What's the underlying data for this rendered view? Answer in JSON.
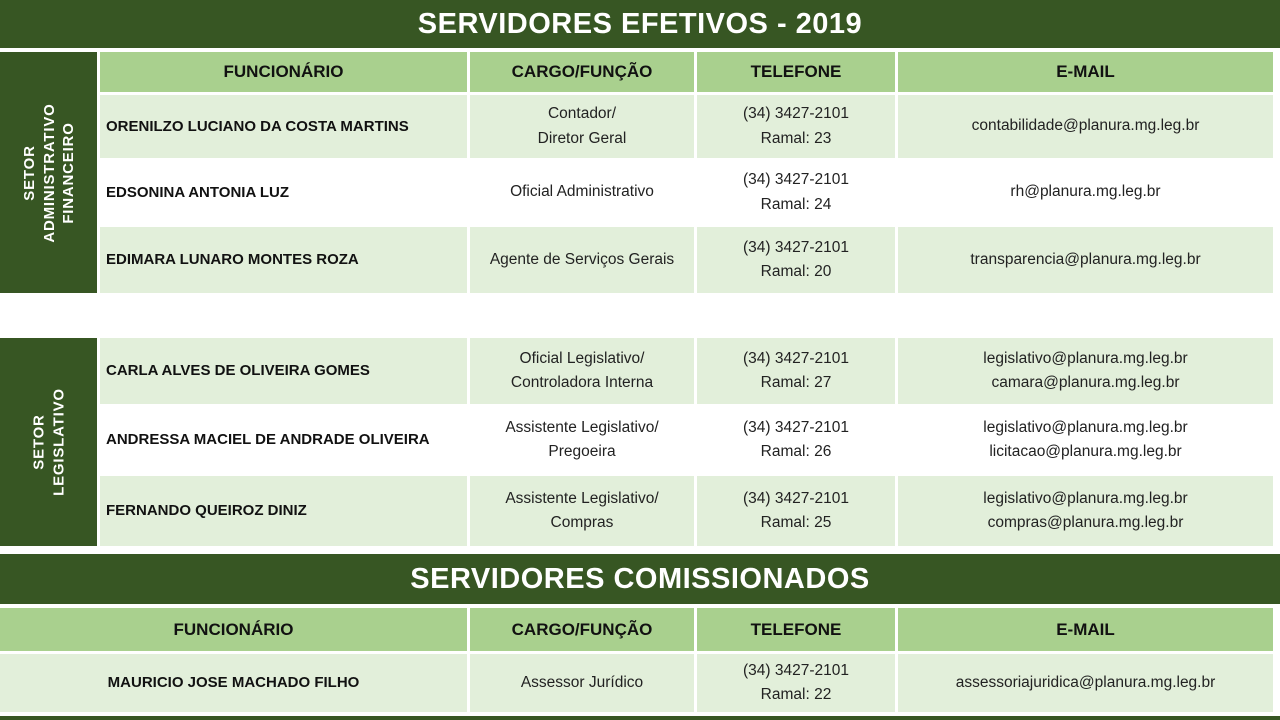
{
  "colors": {
    "dark_green": "#375623",
    "medium_green": "#A9D08E",
    "light_green": "#E2EFDA",
    "row_white": "#FFFFFF"
  },
  "columns": [
    "FUNCIONÁRIO",
    "CARGO/FUNÇÃO",
    "TELEFONE",
    "E-MAIL"
  ],
  "efetivos": {
    "title": "SERVIDORES EFETIVOS - 2019",
    "sections": [
      {
        "label_lines": [
          "SETOR",
          "ADMINISTRATIVO",
          "FINANCEIRO"
        ],
        "rows": [
          {
            "funcionario": "ORENILZO LUCIANO DA COSTA MARTINS",
            "cargo": [
              "Contador/",
              "Diretor Geral"
            ],
            "telefone": [
              "(34) 3427-2101",
              "Ramal: 23"
            ],
            "email": [
              "contabilidade@planura.mg.leg.br"
            ]
          },
          {
            "funcionario": "EDSONINA ANTONIA LUZ",
            "cargo": [
              "Oficial Administrativo"
            ],
            "telefone": [
              "(34) 3427-2101",
              "Ramal: 24"
            ],
            "email": [
              "rh@planura.mg.leg.br"
            ]
          },
          {
            "funcionario": "EDIMARA LUNARO MONTES ROZA",
            "cargo": [
              "Agente de Serviços Gerais"
            ],
            "telefone": [
              "(34) 3427-2101",
              "Ramal: 20"
            ],
            "email": [
              "transparencia@planura.mg.leg.br"
            ]
          }
        ]
      },
      {
        "label_lines": [
          "SETOR",
          "LEGISLATIVO"
        ],
        "rows": [
          {
            "funcionario": "CARLA ALVES DE OLIVEIRA GOMES",
            "cargo": [
              "Oficial Legislativo/",
              "Controladora Interna"
            ],
            "telefone": [
              "(34) 3427-2101",
              "Ramal: 27"
            ],
            "email": [
              "legislativo@planura.mg.leg.br",
              "camara@planura.mg.leg.br"
            ]
          },
          {
            "funcionario": "ANDRESSA MACIEL DE ANDRADE OLIVEIRA",
            "cargo": [
              "Assistente Legislativo/",
              "Pregoeira"
            ],
            "telefone": [
              "(34) 3427-2101",
              "Ramal: 26"
            ],
            "email": [
              "legislativo@planura.mg.leg.br",
              "licitacao@planura.mg.leg.br"
            ]
          },
          {
            "funcionario": "FERNANDO QUEIROZ DINIZ",
            "cargo": [
              "Assistente Legislativo/",
              "Compras"
            ],
            "telefone": [
              "(34) 3427-2101",
              "Ramal: 25"
            ],
            "email": [
              "legislativo@planura.mg.leg.br",
              "compras@planura.mg.leg.br"
            ]
          }
        ]
      }
    ]
  },
  "comissionados": {
    "title": "SERVIDORES COMISSIONADOS",
    "rows": [
      {
        "funcionario": "MAURICIO JOSE MACHADO FILHO",
        "cargo": [
          "Assessor Jurídico"
        ],
        "telefone": [
          "(34) 3427-2101",
          "Ramal: 22"
        ],
        "email": [
          "assessoriajuridica@planura.mg.leg.br"
        ]
      }
    ]
  }
}
